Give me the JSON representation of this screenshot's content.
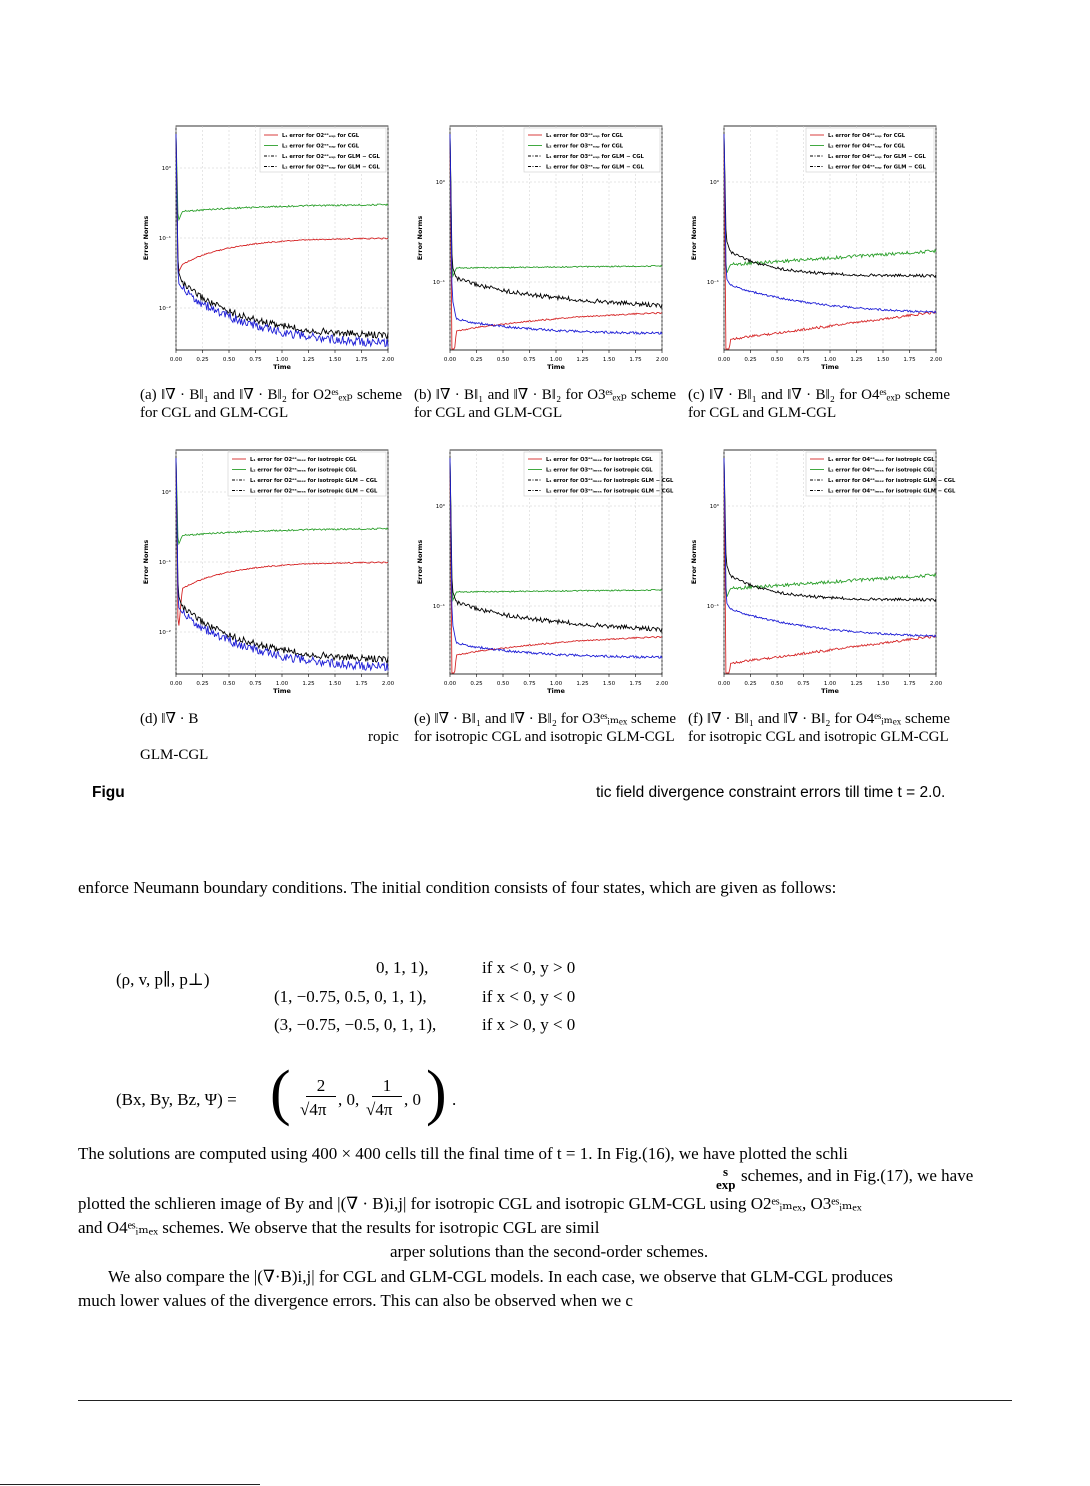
{
  "colors": {
    "l1_cgl": "#d62728",
    "l2_cgl": "#2ca02c",
    "l1_glm": "#000000",
    "l2_glm": "#1f1fd6"
  },
  "panels": [
    {
      "id": "a",
      "legend": [
        "L₁ error for O2ᵉˢₑₓₚ for CGL",
        "L₂ error for O2ᵉˢₑₓₚ for CGL",
        "L₁ error for O2ᵉˢₑₓₚ for GLM − CGL",
        "L₂ error for O2ᵉˢₑₓₚ for GLM − CGL"
      ],
      "caption": "(a) ‖∇ · B‖₁ and ‖∇ · B‖₂ for O2ᵉˢₑₓₚ scheme for CGL and GLM-CGL"
    },
    {
      "id": "b",
      "legend": [
        "L₁ error for O3ᵉˢₑₓₚ for CGL",
        "L₂ error for O3ᵉˢₑₓₚ for CGL",
        "L₁ error for O3ᵉˢₑₓₚ for GLM − CGL",
        "L₂ error for O3ᵉˢₑₓₚ for GLM − CGL"
      ],
      "caption": "(b) ‖∇ · B‖₁ and ‖∇ · B‖₂ for O3ᵉˢₑₓₚ scheme for CGL and GLM-CGL"
    },
    {
      "id": "c",
      "legend": [
        "L₁ error for O4ᵉˢₑₓₚ for CGL",
        "L₂ error for O4ᵉˢₑₓₚ for CGL",
        "L₁ error for O4ᵉˢₑₓₚ for GLM − CGL",
        "L₂ error for O4ᵉˢₑₓₚ for GLM − CGL"
      ],
      "caption": "(c) ‖∇ · B‖₁ and ‖∇ · B‖₂ for O4ᵉˢₑₓₚ scheme for CGL and GLM-CGL"
    },
    {
      "id": "d",
      "legend": [
        "L₁ error for O2ᵉˢᵢₘₑₓ for isotropic CGL",
        "L₂ error for O2ᵉˢᵢₘₑₓ for isotropic CGL",
        "L₁ error for O2ᵉˢᵢₘₑₓ for isotropic GLM − CGL",
        "L₂ error for O2ᵉˢᵢₘₑₓ for isotropic GLM − CGL"
      ],
      "caption": "(d) ‖∇ · B"
    },
    {
      "id": "e",
      "legend": [
        "L₁ error for O3ᵉˢᵢₘₑₓ for isotropic CGL",
        "L₂ error for O3ᵉˢᵢₘₑₓ for isotropic CGL",
        "L₁ error for O3ᵉˢᵢₘₑₓ for isotropic GLM − CGL",
        "L₂ error for O3ᵉˢᵢₘₑₓ for isotropic GLM − CGL"
      ],
      "caption": "(e) ‖∇ · B‖₁ and ‖∇ · B‖₂ for O3ᵉˢᵢₘₑₓ scheme for isotropic CGL and isotropic GLM-CGL"
    },
    {
      "id": "f",
      "legend": [
        "L₁ error for O4ᵉˢᵢₘₑₓ for isotropic CGL",
        "L₂ error for O4ᵉˢᵢₘₑₓ for isotropic CGL",
        "L₁ error for O4ᵉˢᵢₘₑₓ for isotropic GLM − CGL",
        "L₂ error for O4ᵉˢᵢₘₑₓ for isotropic GLM − CGL"
      ],
      "caption": "(f) ‖∇ · B‖₁ and ‖∇ · B‖₂ for O4ᵉˢᵢₘₑₓ scheme for isotropic CGL and isotropic GLM-CGL"
    }
  ],
  "axes": {
    "xlabel": "Time",
    "ylabel": "Error Norms",
    "xticks": [
      "0.00",
      "0.25",
      "0.50",
      "0.75",
      "1.00",
      "1.25",
      "1.50",
      "1.75",
      "2.00"
    ],
    "ytick_labels": [
      "10⁰",
      "10⁻¹",
      "10⁻²"
    ]
  },
  "caption_d_overflow": "ropic",
  "caption_d_last": "GLM-CGL",
  "figure_label": "Figu",
  "figure_text": "tic field divergence constraint errors till time t = 2.0.",
  "para1": "enforce Neumann boundary conditions. The initial condition consists of four states, which are given as follows:",
  "eq_lhs": "(ρ, v, p∥, p⊥)",
  "eq_rows": [
    {
      "val": "0, 1, 1),",
      "cond": "if x < 0,  y > 0"
    },
    {
      "val": "(1, −0.75, 0.5, 0, 1, 1),",
      "cond": "if x < 0,  y < 0"
    },
    {
      "val": "(3, −0.75, −0.5, 0, 1, 1),",
      "cond": "if x > 0,  y < 0"
    }
  ],
  "eq2_lhs": "(Bx, By, Bz, Ψ) =",
  "eq2_rhs": ", 0, , 0",
  "eq2_frac1_num": "2",
  "eq2_frac2_num": "1",
  "eq2_den": "√4π",
  "para2_l1": "The solutions are computed using 400 × 400 cells till the final time of t = 1. In Fig.(16), we have plotted the schli",
  "para2_l2": "s",
  "para2_l2b": "exp",
  "para2_l2c": " schemes, and in Fig.(17), we have",
  "para2_l3": "plotted the schlieren image of By and |(∇ · B)i,j| for isotropic CGL and isotropic GLM-CGL using O2ᵉˢᵢₘₑₓ, O3ᵉˢᵢₘₑₓ",
  "para2_l4": "and O4ᵉˢᵢₘₑₓ schemes. We observe that the results for isotropic CGL are simil",
  "para2_l5": "arper solutions than the second-order schemes.",
  "para3_l1": "We also compare the |(∇·B)i,j| for CGL and GLM-CGL models. In each case, we observe that GLM-CGL produces",
  "para3_l2": "much lower values of the divergence errors. This can also be observed when we c"
}
